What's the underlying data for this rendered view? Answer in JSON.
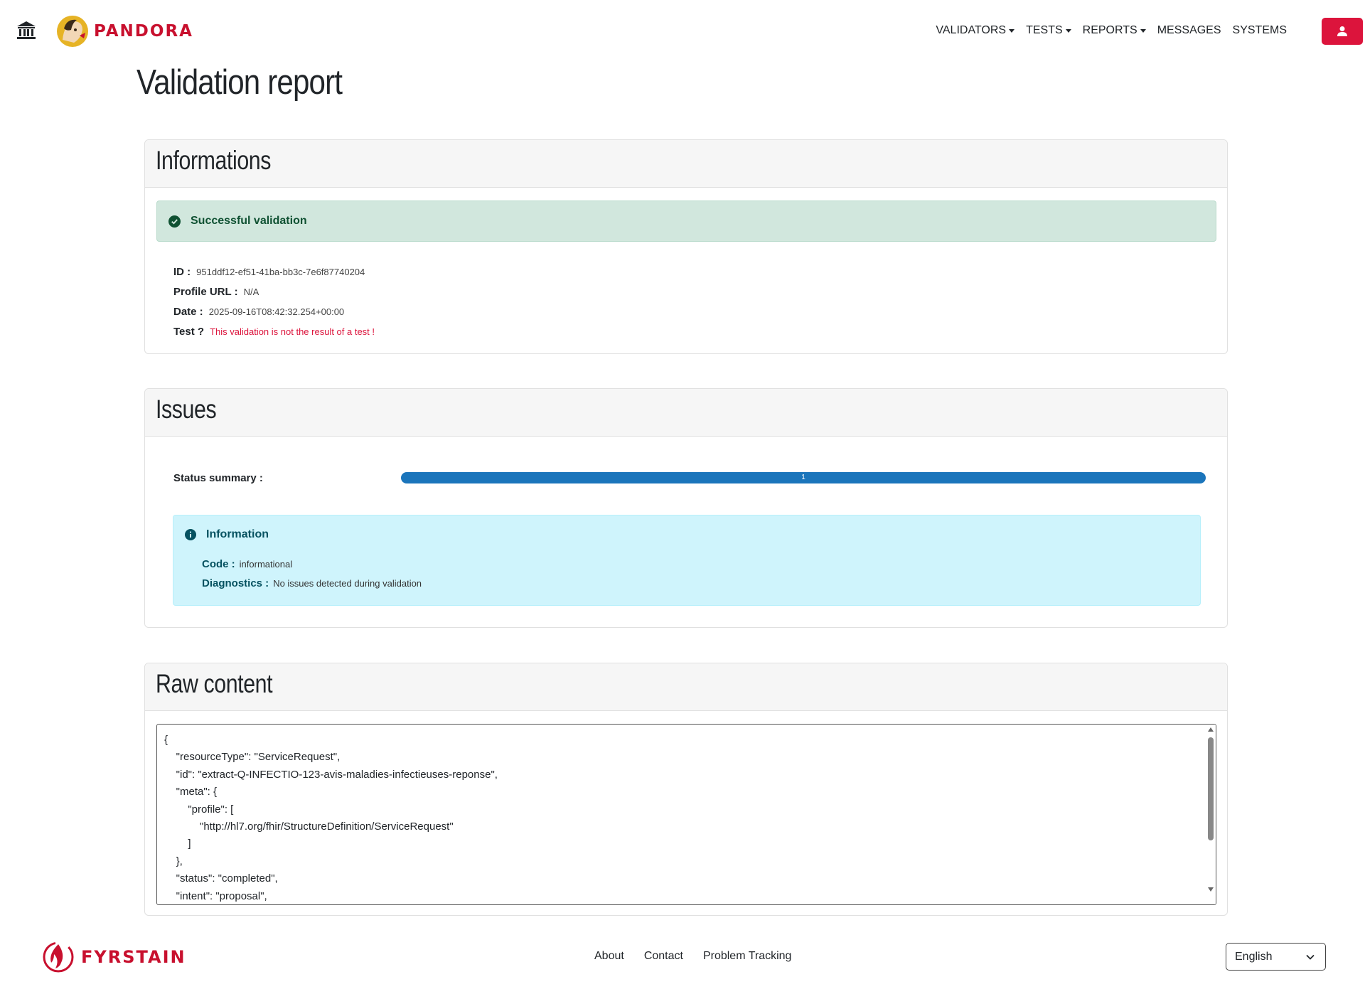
{
  "header": {
    "brand": "PANDORA",
    "nav": [
      {
        "label": "VALIDATORS",
        "dropdown": true
      },
      {
        "label": "TESTS",
        "dropdown": true
      },
      {
        "label": "REPORTS",
        "dropdown": true
      },
      {
        "label": "MESSAGES",
        "dropdown": false
      },
      {
        "label": "SYSTEMS",
        "dropdown": false
      }
    ],
    "icons": {
      "home": "bank-icon",
      "user": "user-icon"
    },
    "accent_color": "#dc143c"
  },
  "page": {
    "title": "Validation report"
  },
  "informations": {
    "title": "Informations",
    "status": "Successful validation",
    "id_label": "ID :",
    "id_value": "951ddf12-ef51-41ba-bb3c-7e6f87740204",
    "profile_label": "Profile URL :",
    "profile_value": "N/A",
    "date_label": "Date :",
    "date_value": "2025-09-16T08:42:32.254+00:00",
    "test_label": "Test ?",
    "test_value": "This validation is not the result of a test !"
  },
  "issues": {
    "title": "Issues",
    "status_summary_label": "Status summary :",
    "progress_label": "1",
    "progress_fraction": 1.0,
    "progress_color": "#1b75bb",
    "info_title": "Information",
    "code_label": "Code :",
    "code_value": "informational",
    "diagnostics_label": "Diagnostics :",
    "diagnostics_value": "No issues detected during validation"
  },
  "raw": {
    "title": "Raw content",
    "lines": [
      "{",
      "    \"resourceType\": \"ServiceRequest\",",
      "    \"id\": \"extract-Q-INFECTIO-123-avis-maladies-infectieuses-reponse\",",
      "    \"meta\": {",
      "        \"profile\": [",
      "            \"http://hl7.org/fhir/StructureDefinition/ServiceRequest\"",
      "        ]",
      "    },",
      "    \"status\": \"completed\",",
      "    \"intent\": \"proposal\","
    ]
  },
  "footer": {
    "brand": "FYRSTAIN",
    "links": [
      "About",
      "Contact",
      "Problem Tracking"
    ],
    "language": "English"
  }
}
